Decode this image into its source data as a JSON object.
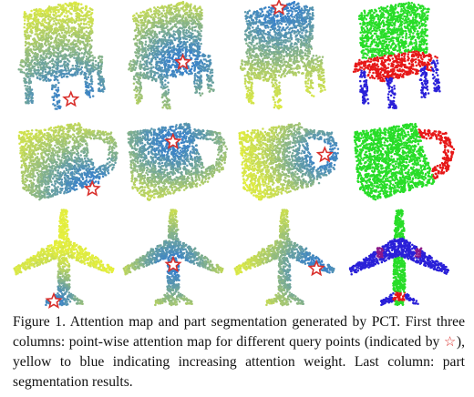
{
  "figure": {
    "caption_label": "Figure 1.",
    "caption_part1": "Attention map and part segmentation generated by PCT. First three columns: point-wise attention map for different query points (indicated by",
    "caption_star": "☆",
    "caption_part2": "), yellow to blue indicating increasing attention weight. Last column: part segmentation results.",
    "rows": [
      {
        "object": "chair",
        "panels": [
          {
            "type": "attention",
            "query": "leg"
          },
          {
            "type": "attention",
            "query": "seat"
          },
          {
            "type": "attention",
            "query": "back"
          },
          {
            "type": "segmentation"
          }
        ]
      },
      {
        "object": "mug",
        "panels": [
          {
            "type": "attention",
            "query": "body-lower"
          },
          {
            "type": "attention",
            "query": "body-upper"
          },
          {
            "type": "attention",
            "query": "handle"
          },
          {
            "type": "segmentation"
          }
        ]
      },
      {
        "object": "airplane",
        "panels": [
          {
            "type": "attention",
            "query": "tail"
          },
          {
            "type": "attention",
            "query": "fuselage"
          },
          {
            "type": "attention",
            "query": "wing"
          },
          {
            "type": "segmentation"
          }
        ]
      }
    ],
    "colors": {
      "attention_low": "#e6f03c",
      "attention_high": "#2e7bd2",
      "seg_green": "#28dd28",
      "seg_red": "#e61818",
      "seg_blue": "#2a20d8",
      "seg_purple": "#8a1a8a",
      "star_fill": "#ffffff",
      "star_stroke": "#d9302c"
    }
  }
}
